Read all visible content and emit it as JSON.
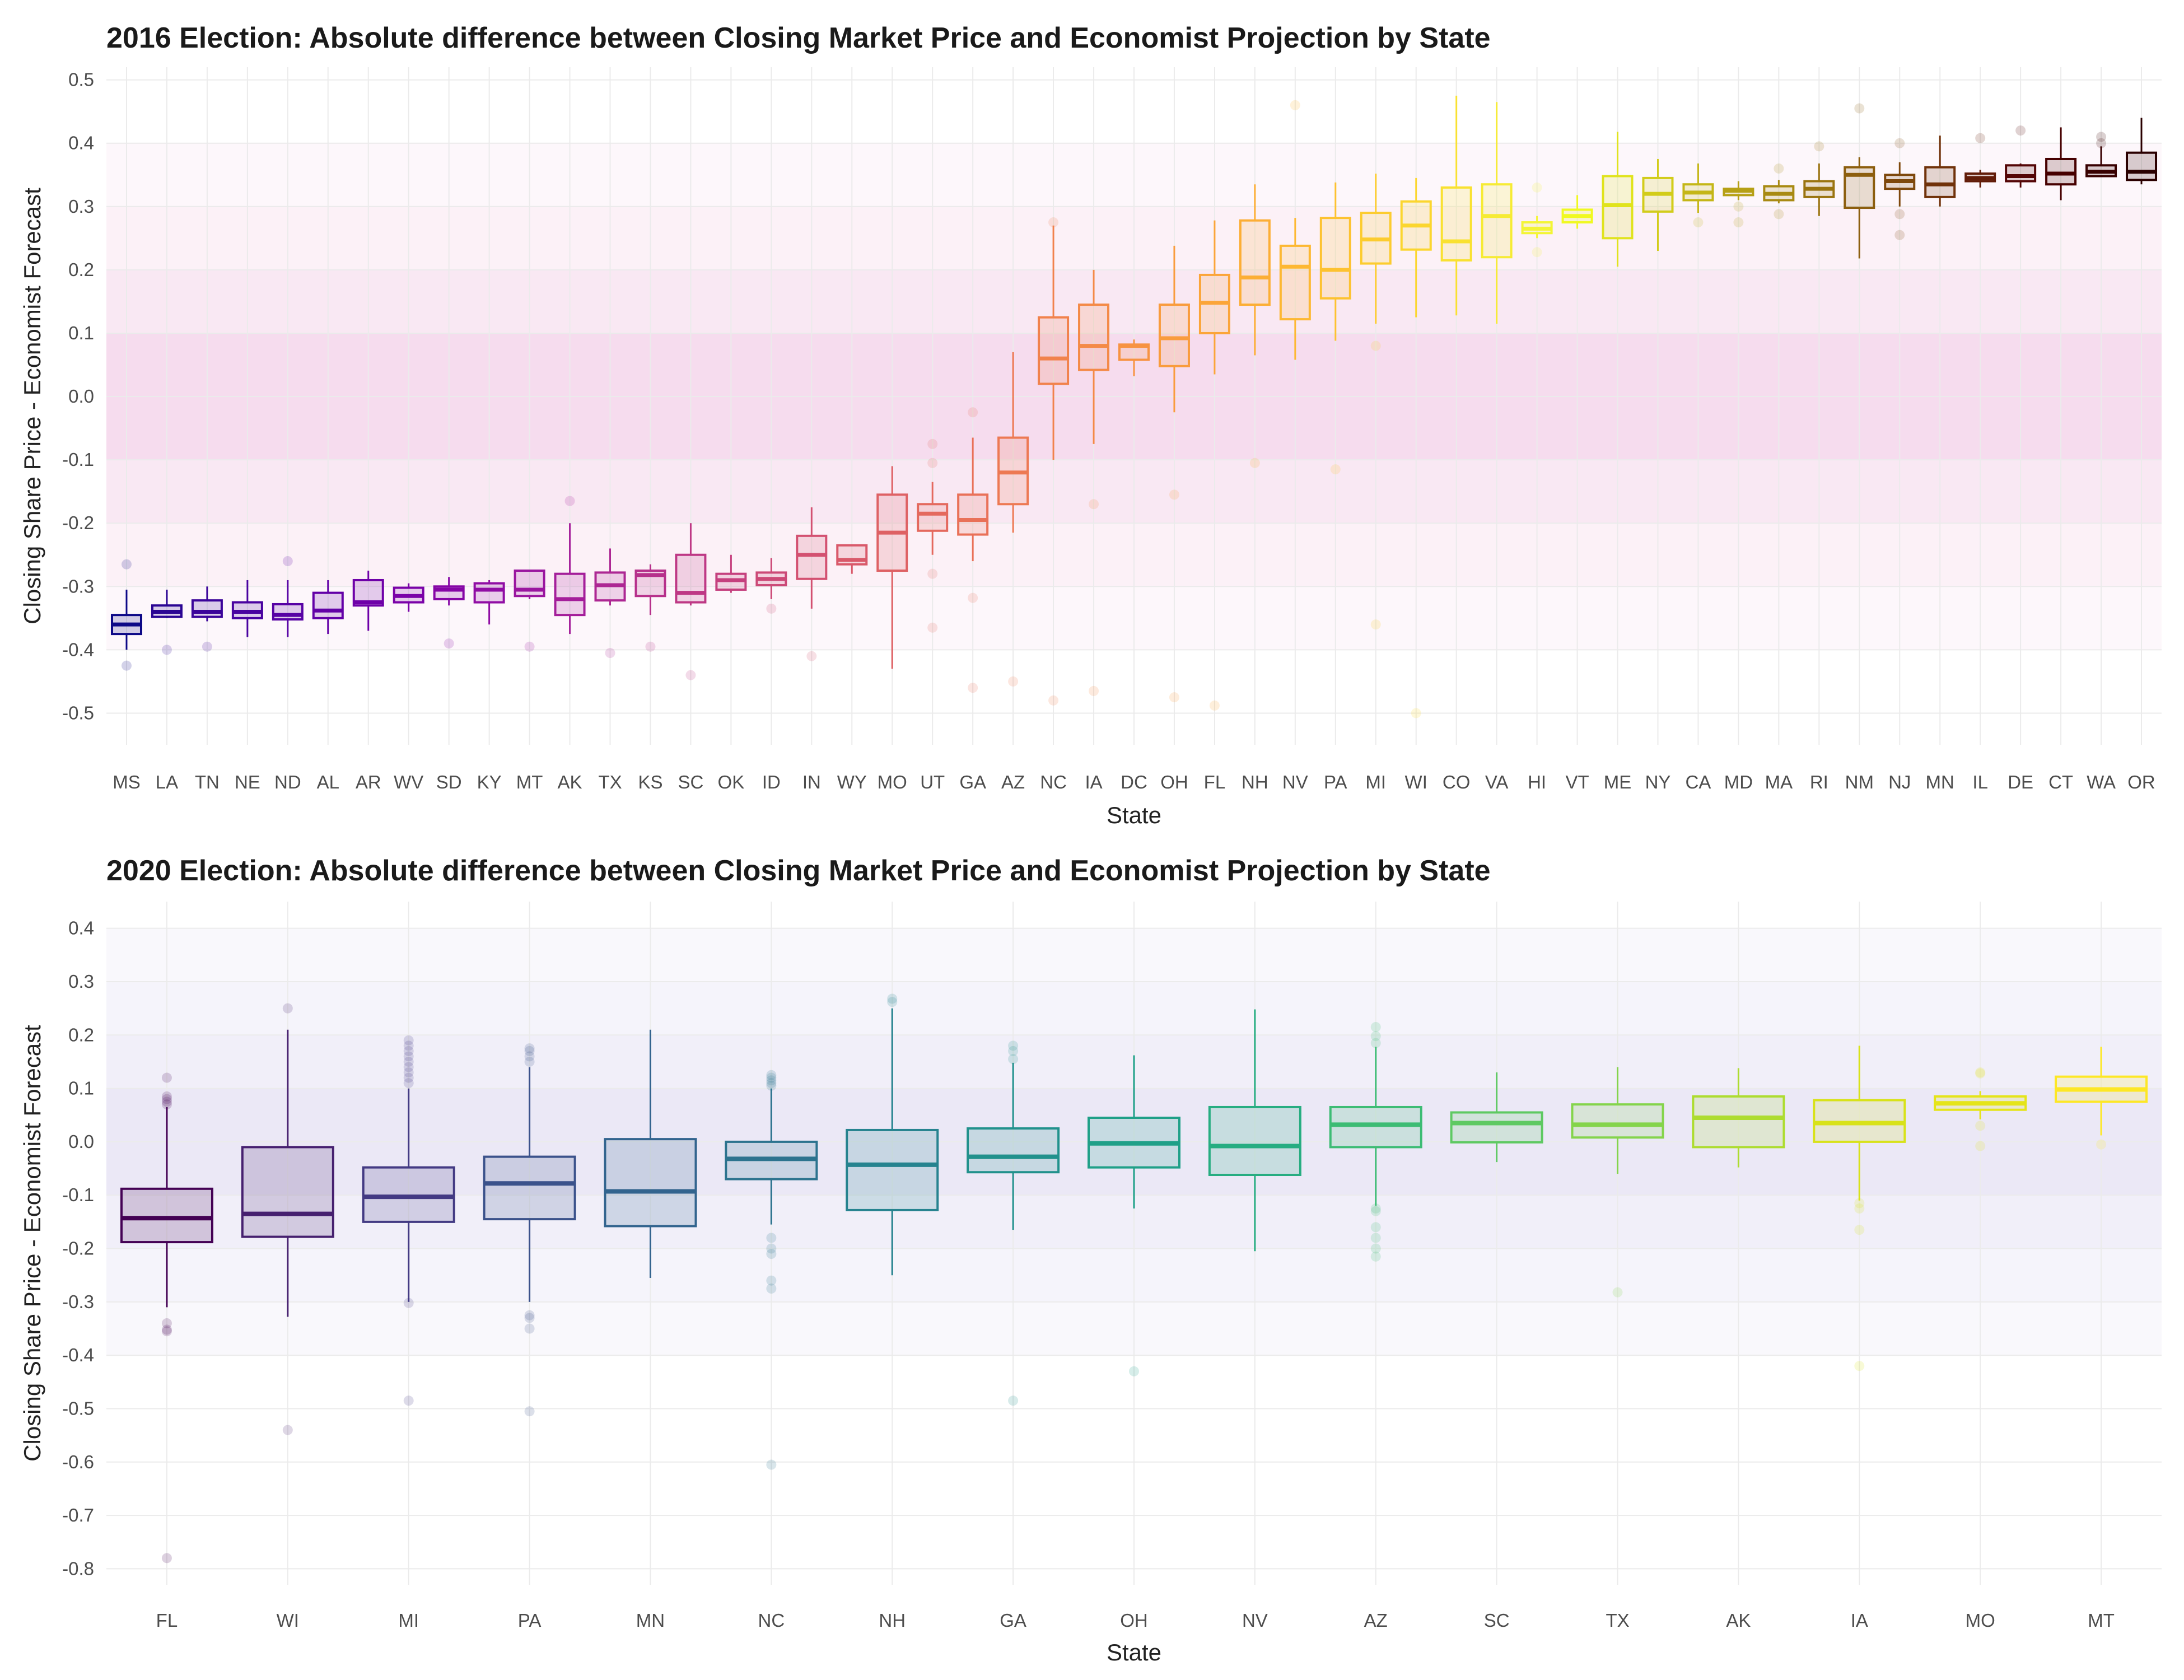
{
  "chart_data": [
    {
      "type": "box",
      "title": "2016 Election: Absolute difference between Closing Market Price and Economist Projection by State",
      "xlabel": "State",
      "ylabel": "Closing Share Price - Economist Forecast",
      "ylim": [
        -0.55,
        0.52
      ],
      "yticks": [
        0.5,
        0.4,
        0.3,
        0.2,
        0.1,
        0.0,
        -0.1,
        -0.2,
        -0.3,
        -0.4,
        -0.5
      ],
      "ytick_labels": [
        "0.5",
        "0.4",
        "0.3",
        "0.2",
        "0.1",
        "0.0",
        "-0.1",
        "-0.2",
        "-0.3",
        "-0.4",
        "-0.5"
      ],
      "bands": [
        {
          "from": -0.1,
          "to": 0.1,
          "color": "#f6dcee"
        },
        {
          "from": 0.1,
          "to": 0.2,
          "color": "#f9e8f3"
        },
        {
          "from": -0.2,
          "to": -0.1,
          "color": "#f9e8f3"
        },
        {
          "from": 0.2,
          "to": 0.3,
          "color": "#fcf1f7"
        },
        {
          "from": -0.3,
          "to": -0.2,
          "color": "#fcf1f7"
        },
        {
          "from": 0.3,
          "to": 0.4,
          "color": "#fdf7fb"
        },
        {
          "from": -0.4,
          "to": -0.3,
          "color": "#fdf7fb"
        }
      ],
      "boxes": [
        {
          "state": "MS",
          "lo": -0.4,
          "q1": -0.375,
          "med": -0.36,
          "q3": -0.345,
          "hi": -0.305,
          "out": [
            -0.265,
            -0.425
          ],
          "color": "#0d0887"
        },
        {
          "state": "LA",
          "lo": -0.35,
          "q1": -0.348,
          "med": -0.34,
          "q3": -0.33,
          "hi": -0.305,
          "out": [
            -0.4
          ],
          "color": "#2a0593"
        },
        {
          "state": "TN",
          "lo": -0.355,
          "q1": -0.348,
          "med": -0.34,
          "q3": -0.322,
          "hi": -0.3,
          "out": [
            -0.395
          ],
          "color": "#3b049a"
        },
        {
          "state": "NE",
          "lo": -0.38,
          "q1": -0.35,
          "med": -0.34,
          "q3": -0.325,
          "hi": -0.29,
          "out": [],
          "color": "#4903a0"
        },
        {
          "state": "ND",
          "lo": -0.38,
          "q1": -0.352,
          "med": -0.345,
          "q3": -0.328,
          "hi": -0.29,
          "out": [
            -0.26
          ],
          "color": "#5702a5"
        },
        {
          "state": "AL",
          "lo": -0.375,
          "q1": -0.35,
          "med": -0.338,
          "q3": -0.31,
          "hi": -0.29,
          "out": [],
          "color": "#6300a7"
        },
        {
          "state": "AR",
          "lo": -0.37,
          "q1": -0.33,
          "med": -0.325,
          "q3": -0.29,
          "hi": -0.275,
          "out": [],
          "color": "#6e00a8"
        },
        {
          "state": "WV",
          "lo": -0.34,
          "q1": -0.325,
          "med": -0.315,
          "q3": -0.302,
          "hi": -0.295,
          "out": [],
          "color": "#7a02a8"
        },
        {
          "state": "SD",
          "lo": -0.33,
          "q1": -0.32,
          "med": -0.305,
          "q3": -0.3,
          "hi": -0.285,
          "out": [
            -0.39
          ],
          "color": "#8606a6"
        },
        {
          "state": "KY",
          "lo": -0.36,
          "q1": -0.325,
          "med": -0.305,
          "q3": -0.295,
          "hi": -0.29,
          "out": [],
          "color": "#900da4"
        },
        {
          "state": "MT",
          "lo": -0.32,
          "q1": -0.315,
          "med": -0.305,
          "q3": -0.275,
          "hi": -0.275,
          "out": [
            -0.395
          ],
          "color": "#9a169f"
        },
        {
          "state": "AK",
          "lo": -0.375,
          "q1": -0.345,
          "med": -0.32,
          "q3": -0.28,
          "hi": -0.2,
          "out": [
            -0.165
          ],
          "color": "#a41e9a"
        },
        {
          "state": "TX",
          "lo": -0.33,
          "q1": -0.322,
          "med": -0.298,
          "q3": -0.278,
          "hi": -0.24,
          "out": [
            -0.405
          ],
          "color": "#ad2793"
        },
        {
          "state": "KS",
          "lo": -0.345,
          "q1": -0.315,
          "med": -0.282,
          "q3": -0.275,
          "hi": -0.265,
          "out": [
            -0.395
          ],
          "color": "#b6308b"
        },
        {
          "state": "SC",
          "lo": -0.33,
          "q1": -0.325,
          "med": -0.31,
          "q3": -0.25,
          "hi": -0.2,
          "out": [
            -0.44
          ],
          "color": "#be3885"
        },
        {
          "state": "OK",
          "lo": -0.31,
          "q1": -0.305,
          "med": -0.29,
          "q3": -0.28,
          "hi": -0.25,
          "out": [],
          "color": "#c5407e"
        },
        {
          "state": "ID",
          "lo": -0.32,
          "q1": -0.298,
          "med": -0.288,
          "q3": -0.278,
          "hi": -0.255,
          "out": [
            -0.335
          ],
          "color": "#cc4977"
        },
        {
          "state": "IN",
          "lo": -0.335,
          "q1": -0.288,
          "med": -0.25,
          "q3": -0.22,
          "hi": -0.175,
          "out": [
            -0.41
          ],
          "color": "#d35171"
        },
        {
          "state": "WY",
          "lo": -0.28,
          "q1": -0.265,
          "med": -0.258,
          "q3": -0.235,
          "hi": -0.235,
          "out": [],
          "color": "#d9596a"
        },
        {
          "state": "MO",
          "lo": -0.43,
          "q1": -0.275,
          "med": -0.215,
          "q3": -0.155,
          "hi": -0.11,
          "out": [],
          "color": "#de6164"
        },
        {
          "state": "UT",
          "lo": -0.25,
          "q1": -0.212,
          "med": -0.185,
          "q3": -0.17,
          "hi": -0.135,
          "out": [
            -0.075,
            -0.105,
            -0.28,
            -0.365
          ],
          "color": "#e4695e"
        },
        {
          "state": "GA",
          "lo": -0.26,
          "q1": -0.218,
          "med": -0.195,
          "q3": -0.155,
          "hi": -0.065,
          "out": [
            -0.025,
            -0.318,
            -0.46
          ],
          "color": "#e97158"
        },
        {
          "state": "AZ",
          "lo": -0.215,
          "q1": -0.17,
          "med": -0.12,
          "q3": -0.065,
          "hi": 0.07,
          "out": [
            -0.45
          ],
          "color": "#ed7953"
        },
        {
          "state": "NC",
          "lo": -0.1,
          "q1": 0.02,
          "med": 0.06,
          "q3": 0.125,
          "hi": 0.27,
          "out": [
            0.275,
            -0.48
          ],
          "color": "#f1824c"
        },
        {
          "state": "IA",
          "lo": -0.075,
          "q1": 0.042,
          "med": 0.08,
          "q3": 0.145,
          "hi": 0.2,
          "out": [
            -0.17,
            -0.465
          ],
          "color": "#f48a47"
        },
        {
          "state": "DC",
          "lo": 0.032,
          "q1": 0.058,
          "med": 0.08,
          "q3": 0.082,
          "hi": 0.09,
          "out": [],
          "color": "#f79342"
        },
        {
          "state": "OH",
          "lo": -0.025,
          "q1": 0.048,
          "med": 0.092,
          "q3": 0.145,
          "hi": 0.238,
          "out": [
            -0.155,
            -0.475
          ],
          "color": "#f99c3d"
        },
        {
          "state": "FL",
          "lo": 0.035,
          "q1": 0.1,
          "med": 0.148,
          "q3": 0.192,
          "hi": 0.278,
          "out": [
            -0.488
          ],
          "color": "#fba539"
        },
        {
          "state": "NH",
          "lo": 0.065,
          "q1": 0.145,
          "med": 0.188,
          "q3": 0.278,
          "hi": 0.335,
          "out": [
            -0.105
          ],
          "color": "#fcae35"
        },
        {
          "state": "NV",
          "lo": 0.058,
          "q1": 0.122,
          "med": 0.205,
          "q3": 0.238,
          "hi": 0.282,
          "out": [
            0.46
          ],
          "color": "#fdb832"
        },
        {
          "state": "PA",
          "lo": 0.088,
          "q1": 0.155,
          "med": 0.2,
          "q3": 0.282,
          "hi": 0.338,
          "out": [
            -0.115
          ],
          "color": "#fdc230"
        },
        {
          "state": "MI",
          "lo": 0.115,
          "q1": 0.21,
          "med": 0.248,
          "q3": 0.29,
          "hi": 0.352,
          "out": [
            0.08,
            -0.36
          ],
          "color": "#fccc2f"
        },
        {
          "state": "WI",
          "lo": 0.125,
          "q1": 0.232,
          "med": 0.27,
          "q3": 0.308,
          "hi": 0.345,
          "out": [
            -0.5
          ],
          "color": "#fbd62f"
        },
        {
          "state": "CO",
          "lo": 0.128,
          "q1": 0.215,
          "med": 0.245,
          "q3": 0.33,
          "hi": 0.475,
          "out": [],
          "color": "#f9e131"
        },
        {
          "state": "VA",
          "lo": 0.115,
          "q1": 0.22,
          "med": 0.285,
          "q3": 0.335,
          "hi": 0.465,
          "out": [],
          "color": "#f6eb34"
        },
        {
          "state": "HI",
          "lo": 0.25,
          "q1": 0.258,
          "med": 0.265,
          "q3": 0.275,
          "hi": 0.285,
          "out": [
            0.33,
            0.228
          ],
          "color": "#f3f535"
        },
        {
          "state": "VT",
          "lo": 0.265,
          "q1": 0.275,
          "med": 0.285,
          "q3": 0.295,
          "hi": 0.318,
          "out": [],
          "color": "#f0f921"
        },
        {
          "state": "ME",
          "lo": 0.205,
          "q1": 0.25,
          "med": 0.302,
          "q3": 0.348,
          "hi": 0.418,
          "out": [],
          "color": "#e0e31d"
        },
        {
          "state": "NY",
          "lo": 0.23,
          "q1": 0.292,
          "med": 0.32,
          "q3": 0.345,
          "hi": 0.375,
          "out": [],
          "color": "#d2cc1a"
        },
        {
          "state": "CA",
          "lo": 0.29,
          "q1": 0.31,
          "med": 0.322,
          "q3": 0.335,
          "hi": 0.368,
          "out": [
            0.275
          ],
          "color": "#c4b617"
        },
        {
          "state": "MD",
          "lo": 0.31,
          "q1": 0.318,
          "med": 0.325,
          "q3": 0.328,
          "hi": 0.34,
          "out": [
            0.3,
            0.275
          ],
          "color": "#b6a015"
        },
        {
          "state": "MA",
          "lo": 0.305,
          "q1": 0.31,
          "med": 0.32,
          "q3": 0.332,
          "hi": 0.342,
          "out": [
            0.36,
            0.288
          ],
          "color": "#a88a12"
        },
        {
          "state": "RI",
          "lo": 0.285,
          "q1": 0.315,
          "med": 0.328,
          "q3": 0.34,
          "hi": 0.368,
          "out": [
            0.395
          ],
          "color": "#9a7410"
        },
        {
          "state": "NM",
          "lo": 0.218,
          "q1": 0.298,
          "med": 0.35,
          "q3": 0.362,
          "hi": 0.378,
          "out": [
            0.455
          ],
          "color": "#8c5e0e"
        },
        {
          "state": "NJ",
          "lo": 0.3,
          "q1": 0.328,
          "med": 0.34,
          "q3": 0.35,
          "hi": 0.37,
          "out": [
            0.4,
            0.288,
            0.255
          ],
          "color": "#7e480c"
        },
        {
          "state": "MN",
          "lo": 0.3,
          "q1": 0.315,
          "med": 0.335,
          "q3": 0.362,
          "hi": 0.412,
          "out": [],
          "color": "#70320a"
        },
        {
          "state": "IL",
          "lo": 0.33,
          "q1": 0.34,
          "med": 0.345,
          "q3": 0.352,
          "hi": 0.358,
          "out": [
            0.408
          ],
          "color": "#621c08"
        },
        {
          "state": "DE",
          "lo": 0.33,
          "q1": 0.34,
          "med": 0.348,
          "q3": 0.365,
          "hi": 0.368,
          "out": [
            0.42
          ],
          "color": "#540606"
        },
        {
          "state": "CT",
          "lo": 0.31,
          "q1": 0.335,
          "med": 0.352,
          "q3": 0.375,
          "hi": 0.425,
          "out": [],
          "color": "#460000"
        },
        {
          "state": "WA",
          "lo": 0.348,
          "q1": 0.348,
          "med": 0.355,
          "q3": 0.365,
          "hi": 0.395,
          "out": [
            0.41,
            0.4
          ],
          "color": "#380000"
        },
        {
          "state": "OR",
          "lo": 0.335,
          "q1": 0.342,
          "med": 0.355,
          "q3": 0.385,
          "hi": 0.44,
          "out": [],
          "color": "#2a0000"
        }
      ]
    },
    {
      "type": "box",
      "title": "2020 Election: Absolute difference between Closing Market Price and Economist Projection by State",
      "xlabel": "State",
      "ylabel": "Closing Share Price - Economist Forecast",
      "ylim": [
        -0.83,
        0.45
      ],
      "yticks": [
        0.4,
        0.3,
        0.2,
        0.1,
        0.0,
        -0.1,
        -0.2,
        -0.3,
        -0.4,
        -0.5,
        -0.6,
        -0.7,
        -0.8
      ],
      "ytick_labels": [
        "0.4",
        "0.3",
        "0.2",
        "0.1",
        "0.0",
        "-0.1",
        "-0.2",
        "-0.3",
        "-0.4",
        "-0.5",
        "-0.6",
        "-0.7",
        "-0.8"
      ],
      "bands": [
        {
          "from": -0.1,
          "to": 0.1,
          "color": "#ebe8f6"
        },
        {
          "from": 0.1,
          "to": 0.2,
          "color": "#f1eff9"
        },
        {
          "from": -0.2,
          "to": -0.1,
          "color": "#f1eff9"
        },
        {
          "from": 0.2,
          "to": 0.3,
          "color": "#f5f4fb"
        },
        {
          "from": -0.3,
          "to": -0.2,
          "color": "#f5f4fb"
        },
        {
          "from": 0.3,
          "to": 0.4,
          "color": "#f9f8fc"
        },
        {
          "from": -0.4,
          "to": -0.3,
          "color": "#f9f8fc"
        }
      ],
      "boxes": [
        {
          "state": "FL",
          "lo": -0.31,
          "q1": -0.188,
          "med": -0.143,
          "q3": -0.088,
          "hi": 0.065,
          "out": [
            0.12,
            0.085,
            0.08,
            0.075,
            0.07,
            -0.34,
            -0.352,
            -0.355,
            -0.78
          ],
          "color": "#440154"
        },
        {
          "state": "WI",
          "lo": -0.328,
          "q1": -0.178,
          "med": -0.135,
          "q3": -0.01,
          "hi": 0.21,
          "out": [
            0.25,
            -0.54
          ],
          "color": "#46206f"
        },
        {
          "state": "MI",
          "lo": -0.3,
          "q1": -0.15,
          "med": -0.103,
          "q3": -0.048,
          "hi": 0.1,
          "out": [
            0.19,
            0.18,
            0.17,
            0.16,
            0.15,
            0.14,
            0.13,
            0.12,
            0.11,
            -0.302,
            -0.485
          ],
          "color": "#433a83"
        },
        {
          "state": "PA",
          "lo": -0.3,
          "q1": -0.145,
          "med": -0.078,
          "q3": -0.028,
          "hi": 0.14,
          "out": [
            0.175,
            0.17,
            0.16,
            0.15,
            -0.325,
            -0.33,
            -0.35,
            -0.505
          ],
          "color": "#3b528b"
        },
        {
          "state": "MN",
          "lo": -0.255,
          "q1": -0.158,
          "med": -0.093,
          "q3": 0.005,
          "hi": 0.21,
          "out": [],
          "color": "#32648e"
        },
        {
          "state": "NC",
          "lo": -0.155,
          "q1": -0.07,
          "med": -0.032,
          "q3": 0.0,
          "hi": 0.1,
          "out": [
            0.125,
            0.12,
            0.115,
            0.11,
            0.105,
            -0.18,
            -0.2,
            -0.21,
            -0.26,
            -0.275,
            -0.605
          ],
          "color": "#2c738e"
        },
        {
          "state": "NH",
          "lo": -0.25,
          "q1": -0.128,
          "med": -0.043,
          "q3": 0.022,
          "hi": 0.25,
          "out": [
            0.268,
            0.262
          ],
          "color": "#26838f"
        },
        {
          "state": "GA",
          "lo": -0.165,
          "q1": -0.057,
          "med": -0.028,
          "q3": 0.025,
          "hi": 0.148,
          "out": [
            0.18,
            0.17,
            0.155,
            -0.485
          ],
          "color": "#21918c"
        },
        {
          "state": "OH",
          "lo": -0.125,
          "q1": -0.048,
          "med": -0.003,
          "q3": 0.045,
          "hi": 0.162,
          "out": [
            -0.43
          ],
          "color": "#1fa088"
        },
        {
          "state": "NV",
          "lo": -0.205,
          "q1": -0.062,
          "med": -0.008,
          "q3": 0.065,
          "hi": 0.248,
          "out": [],
          "color": "#27ad81"
        },
        {
          "state": "AZ",
          "lo": -0.12,
          "q1": -0.01,
          "med": 0.032,
          "q3": 0.065,
          "hi": 0.178,
          "out": [
            0.215,
            0.198,
            0.185,
            -0.125,
            -0.13,
            -0.16,
            -0.18,
            -0.2,
            -0.215
          ],
          "color": "#3dbc74"
        },
        {
          "state": "SC",
          "lo": -0.038,
          "q1": -0.001,
          "med": 0.035,
          "q3": 0.055,
          "hi": 0.13,
          "out": [],
          "color": "#5ec962"
        },
        {
          "state": "TX",
          "lo": -0.06,
          "q1": 0.008,
          "med": 0.032,
          "q3": 0.07,
          "hi": 0.14,
          "out": [
            -0.282
          ],
          "color": "#84d44b"
        },
        {
          "state": "AK",
          "lo": -0.048,
          "q1": -0.01,
          "med": 0.045,
          "q3": 0.085,
          "hi": 0.138,
          "out": [],
          "color": "#addc30"
        },
        {
          "state": "IA",
          "lo": -0.11,
          "q1": 0.0,
          "med": 0.035,
          "q3": 0.078,
          "hi": 0.18,
          "out": [
            -0.115,
            -0.125,
            -0.165,
            -0.42
          ],
          "color": "#d8e219"
        },
        {
          "state": "MO",
          "lo": 0.042,
          "q1": 0.06,
          "med": 0.072,
          "q3": 0.085,
          "hi": 0.095,
          "out": [
            0.13,
            0.128,
            0.03,
            -0.008
          ],
          "color": "#e5e419"
        },
        {
          "state": "MT",
          "lo": 0.012,
          "q1": 0.075,
          "med": 0.098,
          "q3": 0.122,
          "hi": 0.178,
          "out": [
            -0.005
          ],
          "color": "#fde725"
        }
      ]
    }
  ]
}
